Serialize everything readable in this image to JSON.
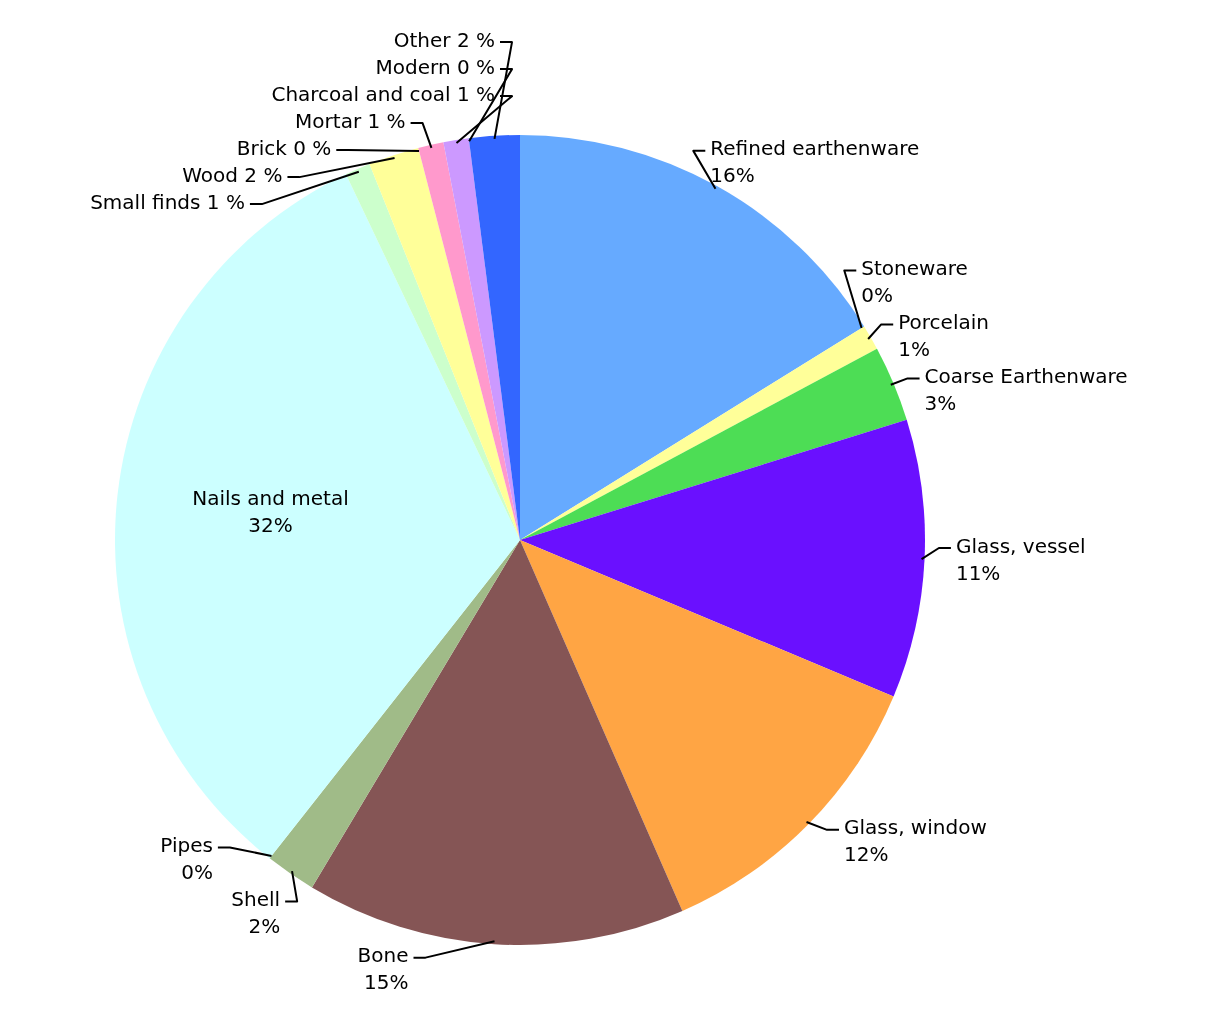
{
  "chart_data": {
    "type": "pie",
    "categories": [
      "Refined earthenware",
      "Stoneware",
      "Porcelain",
      "Coarse Earthenware",
      "Glass, vessel",
      "Glass, window",
      "Bone",
      "Shell",
      "Pipes",
      "Nails and metal",
      "Small finds",
      "Wood",
      "Brick",
      "Mortar",
      "Charcoal and coal",
      "Modern",
      "Other"
    ],
    "values": [
      16,
      0,
      1,
      3,
      11,
      12,
      15,
      2,
      0,
      32,
      1,
      2,
      0,
      1,
      1,
      0,
      2
    ],
    "value_labels": [
      "16%",
      "0%",
      "1%",
      "3%",
      "11%",
      "12%",
      "15%",
      "2%",
      "0%",
      "32%",
      "1 %",
      "2 %",
      "0 %",
      "1 %",
      "1 %",
      "0 %",
      "2 %"
    ],
    "colors": [
      "#66aaff",
      "#e03030",
      "#ffff99",
      "#4ddd55",
      "#6a10ff",
      "#ffa544",
      "#855555",
      "#a0bb88",
      "#11ccff",
      "#ccffff",
      "#ccffcc",
      "#ffff99",
      "#99ccff",
      "#ff99cc",
      "#cc99ff",
      "#cc99ff",
      "#3366ff"
    ]
  }
}
